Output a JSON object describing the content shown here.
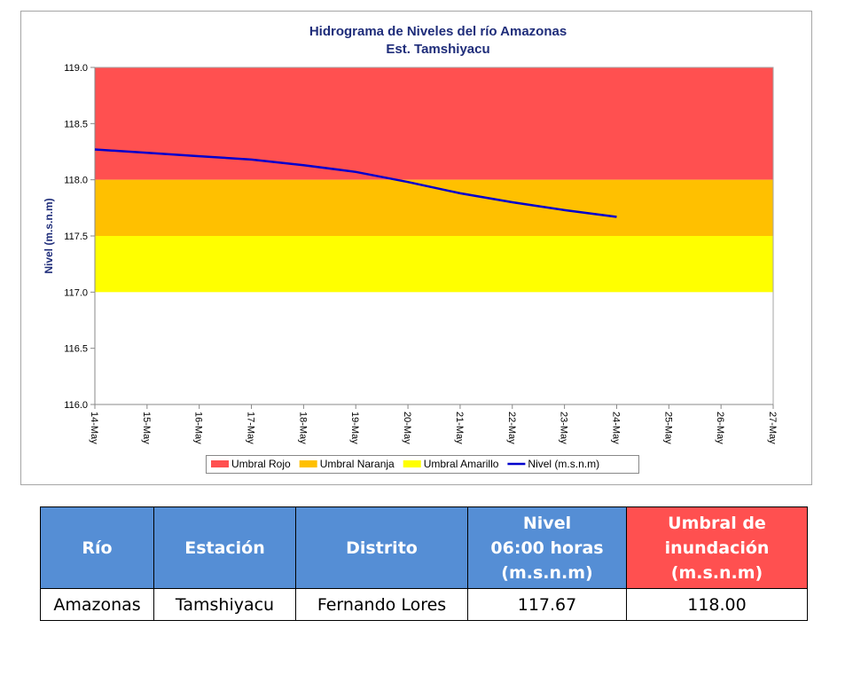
{
  "chart_data": {
    "type": "line",
    "title": "Hidrograma de Niveles del río Amazonas",
    "subtitle": "Est. Tamshiyacu",
    "y_label": "Nivel (m.s.n.m)",
    "categories": [
      "14-May",
      "15-May",
      "16-May",
      "17-May",
      "18-May",
      "19-May",
      "20-May",
      "21-May",
      "22-May",
      "23-May",
      "24-May",
      "25-May",
      "26-May",
      "27-May"
    ],
    "bands": [
      {
        "name": "Umbral Rojo",
        "color": "#ff5050",
        "range": [
          118,
          119
        ]
      },
      {
        "name": "Umbral Naranja",
        "color": "#ffc000",
        "range": [
          117.5,
          118
        ]
      },
      {
        "name": "Umbral Amarillo",
        "color": "#ffff00",
        "range": [
          117,
          117.5
        ]
      }
    ],
    "series": [
      {
        "name": "Nivel (m.s.n.m)",
        "color": "#0000cc",
        "values": [
          118.27,
          118.24,
          118.21,
          118.18,
          118.13,
          118.07,
          117.98,
          117.88,
          117.8,
          117.73,
          117.67,
          null,
          null,
          null
        ]
      }
    ],
    "ylim": [
      116,
      119
    ],
    "yticks": [
      {
        "value": 116,
        "label": "116.0"
      },
      {
        "value": 116.5,
        "label": "116.5"
      },
      {
        "value": 117,
        "label": "117.0"
      },
      {
        "value": 117.5,
        "label": "117.5"
      },
      {
        "value": 118,
        "label": "118.0"
      },
      {
        "value": 118.5,
        "label": "118.5"
      },
      {
        "value": 119,
        "label": "119.0"
      }
    ],
    "legend": "bottom"
  },
  "table": {
    "headers": [
      [
        "Río"
      ],
      [
        "Estación"
      ],
      [
        "Distrito"
      ],
      [
        "Nivel",
        "06:00 horas",
        "(m.s.n.m)"
      ],
      [
        "Umbral de",
        "inundación",
        "(m.s.n.m)"
      ]
    ],
    "header_colors": [
      "#558ed5",
      "#558ed5",
      "#558ed5",
      "#558ed5",
      "#ff5050"
    ],
    "rows": [
      [
        "Amazonas",
        "Tamshiyacu",
        "Fernando Lores",
        "117.67",
        "118.00"
      ]
    ]
  }
}
